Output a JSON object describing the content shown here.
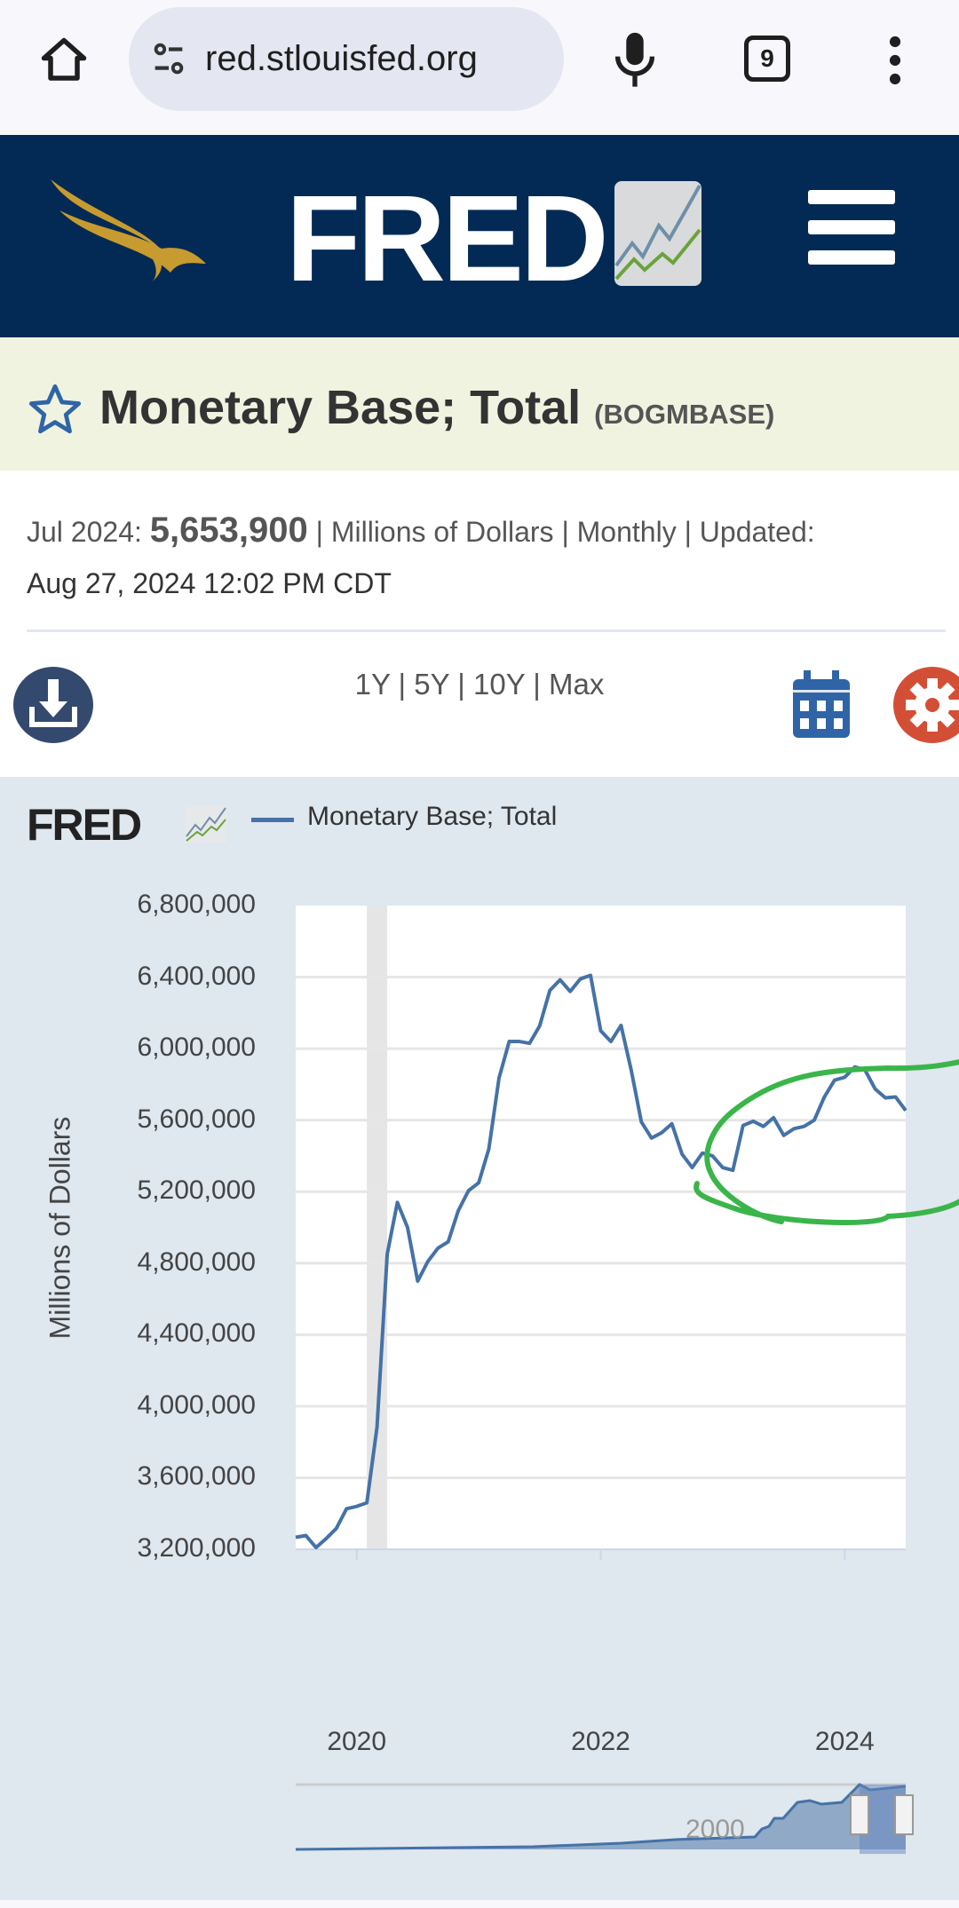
{
  "browser": {
    "url": "red.stlouisfed.org",
    "tab_count": "9"
  },
  "header": {
    "logo": "FRED"
  },
  "series": {
    "title": "Monetary Base; Total",
    "ticker": "(BOGMBASE)"
  },
  "info": {
    "period": "Jul 2024:",
    "value": "5,653,900",
    "details": "| Millions of Dollars | Monthly | Updated:",
    "updated": "Aug 27, 2024 12:02 PM CDT"
  },
  "ranges": [
    "1Y",
    "5Y",
    "10Y",
    "Max"
  ],
  "colors": {
    "line": "#4572a7",
    "annotation": "#3ab54a",
    "header": "#022a55",
    "gear": "#d24f35"
  },
  "chart_data": {
    "type": "line",
    "title": "",
    "legend": "Monetary Base; Total",
    "legend_position": "top-left",
    "ylabel": "Millions of Dollars",
    "xlabel": "",
    "ylim": [
      3200000,
      6800000
    ],
    "yticks": [
      "6,800,000",
      "6,400,000",
      "6,000,000",
      "5,600,000",
      "5,200,000",
      "4,800,000",
      "4,400,000",
      "4,000,000",
      "3,600,000",
      "3,200,000"
    ],
    "xticks": [
      "2020",
      "2022",
      "2024"
    ],
    "x_start": "2019-07",
    "x_end": "2024-07",
    "recession": [
      "2020-02",
      "2020-04"
    ],
    "values": [
      3267000,
      3277000,
      3210000,
      3260000,
      3317000,
      3427000,
      3440000,
      3460000,
      3884000,
      4850000,
      5140000,
      5000000,
      4700000,
      4810000,
      4885000,
      4920000,
      5095000,
      5206000,
      5250000,
      5440000,
      5836000,
      6040000,
      6040000,
      6030000,
      6128000,
      6326000,
      6385000,
      6320000,
      6390000,
      6410000,
      6100000,
      6040000,
      6130000,
      5880000,
      5590000,
      5500000,
      5530000,
      5580000,
      5410000,
      5335000,
      5416000,
      5400000,
      5335000,
      5320000,
      5570000,
      5594000,
      5565000,
      5614000,
      5515000,
      5552000,
      5565000,
      5600000,
      5730000,
      5824000,
      5840000,
      5898000,
      5880000,
      5774000,
      5725000,
      5730000,
      5653900
    ],
    "navigator_label": "2000",
    "grid": true
  }
}
